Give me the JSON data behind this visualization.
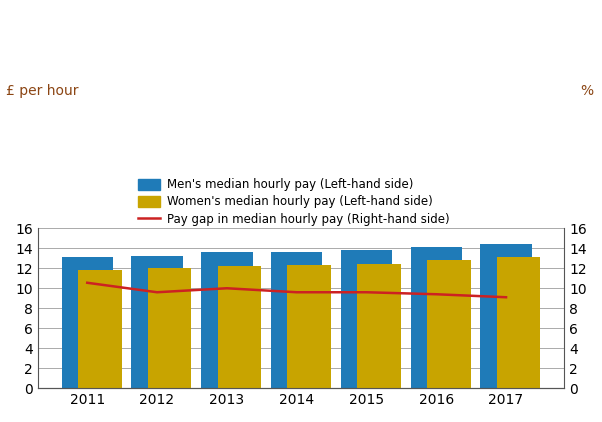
{
  "years": [
    2011,
    2012,
    2013,
    2014,
    2015,
    2016,
    2017
  ],
  "mens_pay": [
    13.1,
    13.25,
    13.6,
    13.6,
    13.85,
    14.1,
    14.45
  ],
  "womens_pay": [
    11.85,
    12.05,
    12.25,
    12.3,
    12.45,
    12.8,
    13.1
  ],
  "pay_gap": [
    10.55,
    9.6,
    10.0,
    9.6,
    9.6,
    9.4,
    9.1
  ],
  "mens_color": "#1F7BB8",
  "womens_color": "#C8A400",
  "gap_color": "#CC2222",
  "bar_width": 0.4,
  "ylim_left": [
    0,
    16
  ],
  "ylim_right": [
    0,
    16
  ],
  "yticks": [
    0,
    2,
    4,
    6,
    8,
    10,
    12,
    14,
    16
  ],
  "label_color": "#8B4513",
  "legend_labels": [
    "Men's median hourly pay (Left-hand side)",
    "Women's median hourly pay (Left-hand side)",
    "Pay gap in median hourly pay (Right-hand side)"
  ],
  "ylabel_left": "£ per hour",
  "ylabel_right": "%"
}
